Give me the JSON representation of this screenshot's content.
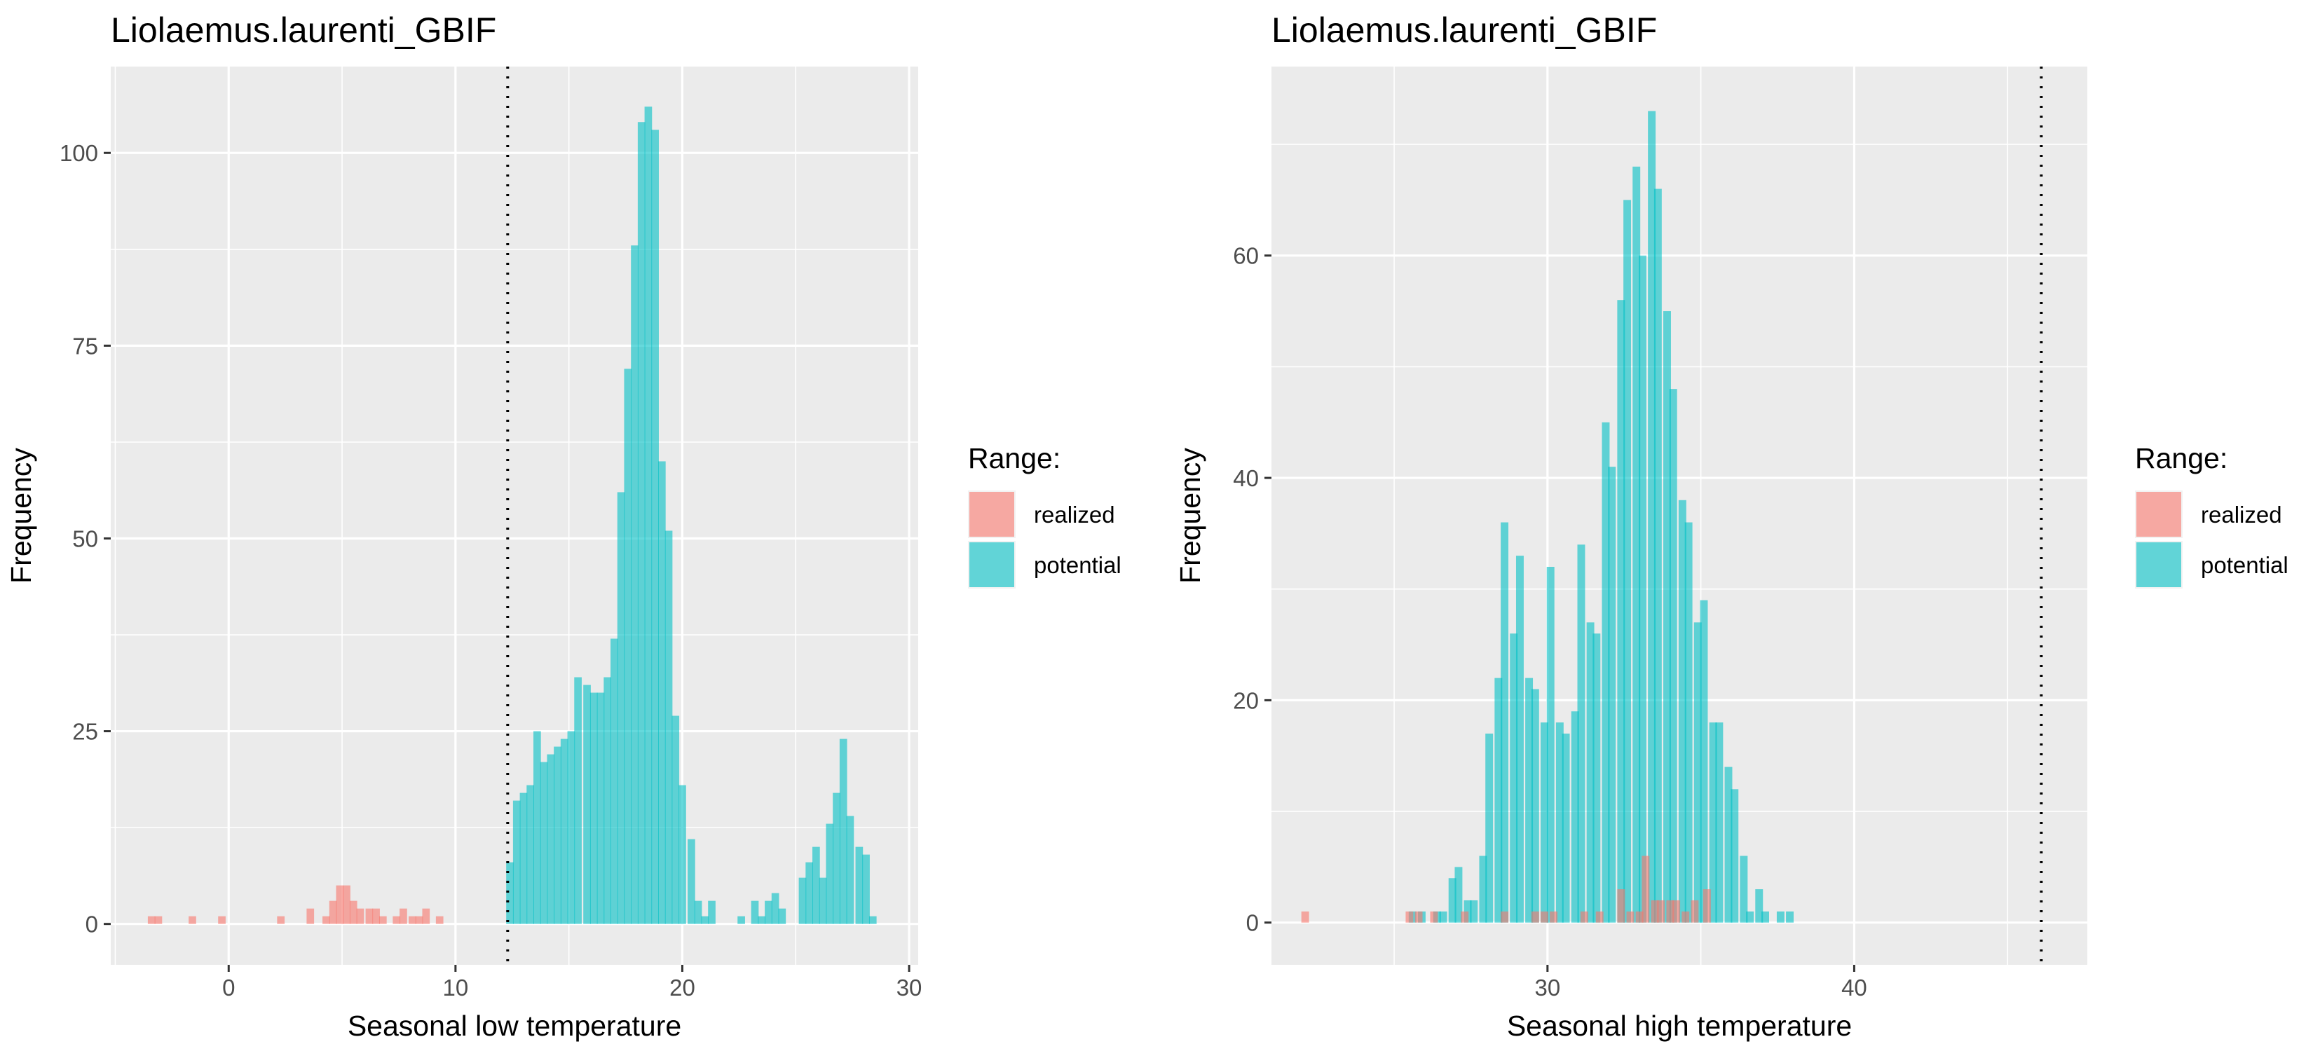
{
  "chart_data": [
    {
      "type": "bar",
      "title": "Liolaemus.laurenti_GBIF",
      "xlabel": "Seasonal low temperature",
      "ylabel": "Frequency",
      "xlim": [
        -5.2,
        30.4
      ],
      "ylim": [
        -5.3,
        111.2
      ],
      "xticks": [
        0,
        10,
        20,
        30
      ],
      "yticks": [
        0,
        25,
        50,
        75,
        100
      ],
      "grid": true,
      "legend_title": "Range:",
      "legend_position": "right",
      "vline": {
        "x": 12.3,
        "style": "dotted"
      },
      "bin_width": 0.33,
      "series": [
        {
          "name": "realized",
          "color": "#F8766D",
          "x": [
            -3.4,
            -3.1,
            -1.6,
            -0.3,
            2.3,
            3.6,
            4.3,
            4.6,
            4.9,
            5.2,
            5.5,
            5.8,
            6.2,
            6.5,
            6.8,
            7.4,
            7.7,
            8.1,
            8.4,
            8.7,
            9.3
          ],
          "y": [
            1,
            1,
            1,
            1,
            1,
            2,
            1,
            3,
            5,
            5,
            3,
            2,
            2,
            2,
            1,
            1,
            2,
            1,
            1,
            2,
            1
          ]
        },
        {
          "name": "potential",
          "color": "#00BFC4",
          "x": [
            12.4,
            12.7,
            13.0,
            13.3,
            13.6,
            13.9,
            14.2,
            14.5,
            14.8,
            15.1,
            15.4,
            15.8,
            16.1,
            16.4,
            16.7,
            17.0,
            17.3,
            17.6,
            17.9,
            18.2,
            18.5,
            18.8,
            19.1,
            19.4,
            19.7,
            20.0,
            20.4,
            20.7,
            21.0,
            21.3,
            22.6,
            23.2,
            23.5,
            23.8,
            24.1,
            24.4,
            25.3,
            25.6,
            25.9,
            26.2,
            26.5,
            26.8,
            27.1,
            27.4,
            27.8,
            28.1,
            28.4
          ],
          "y": [
            8,
            16,
            17,
            18,
            25,
            21,
            22,
            23,
            24,
            25,
            32,
            31,
            30,
            30,
            32,
            37,
            56,
            72,
            88,
            104,
            106,
            103,
            60,
            51,
            27,
            18,
            11,
            3,
            1,
            3,
            1,
            3,
            1,
            3,
            4,
            2,
            6,
            8,
            10,
            6,
            13,
            17,
            24,
            14,
            10,
            9,
            1
          ]
        }
      ]
    },
    {
      "type": "bar",
      "title": "Liolaemus.laurenti_GBIF",
      "xlabel": "Seasonal high temperature",
      "ylabel": "Frequency",
      "xlim": [
        21.0,
        47.6
      ],
      "ylim": [
        -3.8,
        77.0
      ],
      "xticks": [
        30,
        40
      ],
      "yticks": [
        0,
        20,
        40,
        60
      ],
      "grid": true,
      "legend_title": "Range:",
      "legend_position": "right",
      "vline": {
        "x": 46.1,
        "style": "dotted"
      },
      "bin_width": 0.25,
      "series": [
        {
          "name": "realized",
          "color": "#F8766D",
          "x": [
            22.1,
            25.5,
            25.8,
            26.3,
            27.3,
            28.6,
            29.6,
            29.9,
            30.2,
            31.2,
            31.7,
            32.4,
            32.7,
            33.0,
            33.2,
            33.5,
            33.7,
            34.0,
            34.2,
            34.5,
            34.8,
            35.2
          ],
          "y": [
            1,
            1,
            1,
            1,
            1,
            1,
            1,
            1,
            1,
            1,
            1,
            3,
            1,
            1,
            6,
            2,
            2,
            2,
            2,
            1,
            2,
            3
          ]
        },
        {
          "name": "potential",
          "color": "#00BFC4",
          "x": [
            25.6,
            25.9,
            26.1,
            26.4,
            26.6,
            26.9,
            27.1,
            27.4,
            27.6,
            27.9,
            28.1,
            28.4,
            28.6,
            28.9,
            29.1,
            29.4,
            29.6,
            29.9,
            30.1,
            30.4,
            30.6,
            30.9,
            31.1,
            31.4,
            31.6,
            31.9,
            32.1,
            32.4,
            32.6,
            32.9,
            33.1,
            33.4,
            33.6,
            33.9,
            34.1,
            34.4,
            34.6,
            34.9,
            35.1,
            35.4,
            35.6,
            35.9,
            36.1,
            36.4,
            36.6,
            36.9,
            37.1,
            37.6,
            37.9
          ],
          "y": [
            1,
            1,
            0,
            1,
            1,
            4,
            5,
            2,
            2,
            6,
            17,
            22,
            36,
            26,
            33,
            22,
            21,
            18,
            32,
            18,
            17,
            19,
            34,
            27,
            26,
            45,
            41,
            56,
            65,
            68,
            60,
            73,
            66,
            55,
            48,
            38,
            36,
            27,
            29,
            18,
            18,
            14,
            12,
            6,
            1,
            3,
            1,
            1,
            1
          ]
        }
      ]
    }
  ]
}
